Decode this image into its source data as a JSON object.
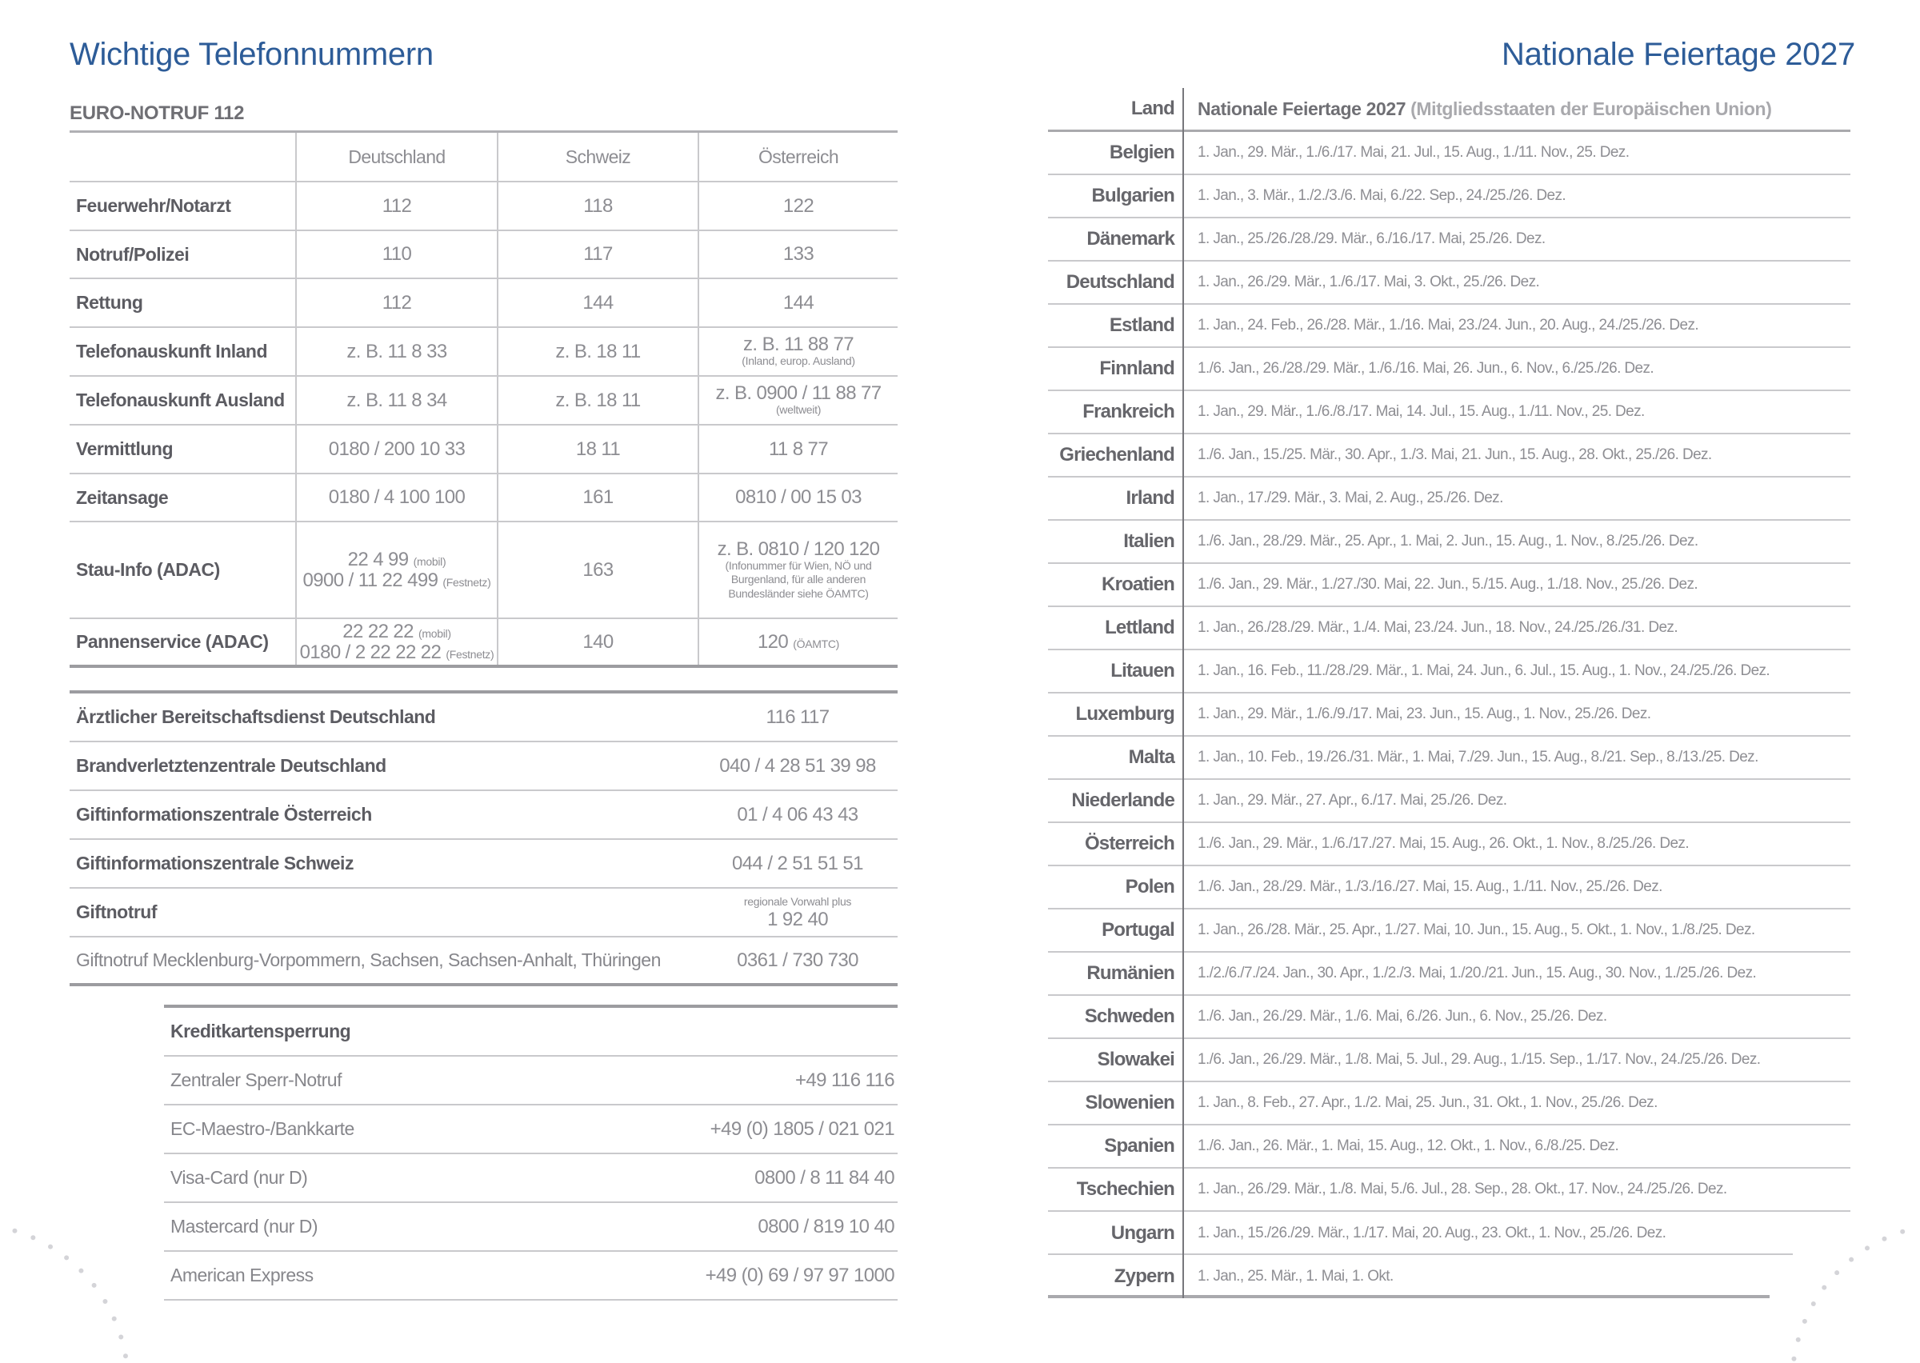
{
  "left": {
    "title": "Wichtige Telefonnummern",
    "section": "EURO-NOTRUF 112",
    "headers": [
      "",
      "Deutschland",
      "Schweiz",
      "Österreich"
    ],
    "rows": [
      {
        "label": "Feuerwehr/Notarzt",
        "cells": [
          {
            "lines": [
              {
                "t": "112"
              }
            ]
          },
          {
            "lines": [
              {
                "t": "118"
              }
            ]
          },
          {
            "lines": [
              {
                "t": "122"
              }
            ]
          }
        ]
      },
      {
        "label": "Notruf/Polizei",
        "cells": [
          {
            "lines": [
              {
                "t": "110"
              }
            ]
          },
          {
            "lines": [
              {
                "t": "117"
              }
            ]
          },
          {
            "lines": [
              {
                "t": "133"
              }
            ]
          }
        ]
      },
      {
        "label": "Rettung",
        "cells": [
          {
            "lines": [
              {
                "t": "112"
              }
            ]
          },
          {
            "lines": [
              {
                "t": "144"
              }
            ]
          },
          {
            "lines": [
              {
                "t": "144"
              }
            ]
          }
        ]
      },
      {
        "label": "Telefonauskunft Inland",
        "cells": [
          {
            "lines": [
              {
                "t": "z. B. 11 8 33"
              }
            ]
          },
          {
            "lines": [
              {
                "t": "z. B. 18 11"
              }
            ]
          },
          {
            "lines": [
              {
                "t": "z. B. 11 88 77"
              }
            ],
            "sub": "(Inland, europ. Ausland)"
          }
        ]
      },
      {
        "label": "Telefonauskunft Ausland",
        "cells": [
          {
            "lines": [
              {
                "t": "z. B. 11 8 34"
              }
            ]
          },
          {
            "lines": [
              {
                "t": "z. B. 18 11"
              }
            ]
          },
          {
            "lines": [
              {
                "t": "z. B. 0900 / 11 88 77"
              }
            ],
            "sub": "(weltweit)"
          }
        ]
      },
      {
        "label": "Vermittlung",
        "cells": [
          {
            "lines": [
              {
                "t": "0180 / 200 10 33"
              }
            ]
          },
          {
            "lines": [
              {
                "t": "18 11"
              }
            ]
          },
          {
            "lines": [
              {
                "t": "11 8 77"
              }
            ]
          }
        ]
      },
      {
        "label": "Zeitansage",
        "cells": [
          {
            "lines": [
              {
                "t": "0180 / 4 100 100"
              }
            ]
          },
          {
            "lines": [
              {
                "t": "161"
              }
            ]
          },
          {
            "lines": [
              {
                "t": "0810 / 00 15 03"
              }
            ]
          }
        ]
      },
      {
        "label": "Stau-Info (ADAC)",
        "cells": [
          {
            "lines": [
              {
                "t": "22 4 99",
                "n": "(mobil)"
              },
              {
                "t": "0900 / 11 22 499",
                "n": "(Festnetz)"
              }
            ]
          },
          {
            "lines": [
              {
                "t": "163"
              }
            ]
          },
          {
            "lines": [
              {
                "t": "z. B. 0810 / 120 120"
              }
            ],
            "sub": "(Infonummer für Wien, NÖ und Burgenland, für alle anderen Bundesländer siehe ÖAMTC)"
          }
        ]
      },
      {
        "label": "Pannenservice (ADAC)",
        "cells": [
          {
            "lines": [
              {
                "t": "22 22 22",
                "n": "(mobil)"
              },
              {
                "t": "0180 / 2 22 22 22",
                "n": "(Festnetz)"
              }
            ]
          },
          {
            "lines": [
              {
                "t": "140"
              }
            ]
          },
          {
            "lines": [
              {
                "t": "120",
                "n": "(ÖAMTC)"
              }
            ]
          }
        ]
      }
    ],
    "services": [
      {
        "label": "Ärztlicher Bereitschaftsdienst Deutschland",
        "value": "116 117"
      },
      {
        "label": "Brandverletztenzentrale Deutschland",
        "value": "040 / 4 28 51 39 98"
      },
      {
        "label": "Giftinformationszentrale Österreich",
        "value": "01 / 4 06 43 43"
      },
      {
        "label": "Giftinformationszentrale Schweiz",
        "value": "044 / 2 51 51 51"
      },
      {
        "label": "Giftnotruf",
        "value": "1 92 40",
        "pre": "regionale Vorwahl plus"
      },
      {
        "label": "Giftnotruf Mecklenburg-Vorpommern, Sachsen, Sachsen-Anhalt, Thüringen",
        "value": "0361 / 730 730",
        "light": true
      }
    ],
    "cards_title": "Kreditkartensperrung",
    "cards": [
      {
        "label": "Zentraler Sperr-Notruf",
        "value": "+49 116 116"
      },
      {
        "label": "EC-Maestro-/Bankkarte",
        "value": "+49 (0) 1805 / 021 021"
      },
      {
        "label": "Visa-Card (nur D)",
        "value": "0800 / 8 11 84 40"
      },
      {
        "label": "Mastercard (nur D)",
        "value": "0800 / 819 10 40"
      },
      {
        "label": "American Express",
        "value": "+49 (0) 69 / 97 97 1000"
      }
    ]
  },
  "right": {
    "title": "Nationale Feiertage 2027",
    "head_land": "Land",
    "head_title": "Nationale Feiertage 2027",
    "head_paren": "(Mitgliedsstaaten der Europäischen Union)",
    "countries": [
      {
        "land": "Belgien",
        "dates": "1. Jan., 29. Mär., 1./6./17. Mai, 21. Jul., 15. Aug., 1./11. Nov., 25. Dez."
      },
      {
        "land": "Bulgarien",
        "dates": "1. Jan., 3. Mär., 1./2./3./6. Mai, 6./22. Sep., 24./25./26. Dez."
      },
      {
        "land": "Dänemark",
        "dates": "1. Jan., 25./26./28./29. Mär., 6./16./17. Mai, 25./26. Dez."
      },
      {
        "land": "Deutschland",
        "dates": "1. Jan., 26./29. Mär., 1./6./17. Mai, 3. Okt., 25./26. Dez."
      },
      {
        "land": "Estland",
        "dates": "1. Jan., 24. Feb., 26./28. Mär., 1./16. Mai, 23./24. Jun., 20. Aug., 24./25./26. Dez."
      },
      {
        "land": "Finnland",
        "dates": "1./6. Jan., 26./28./29. Mär., 1./6./16. Mai, 26. Jun., 6. Nov., 6./25./26. Dez."
      },
      {
        "land": "Frankreich",
        "dates": "1. Jan., 29. Mär., 1./6./8./17. Mai, 14. Jul., 15. Aug., 1./11. Nov., 25. Dez."
      },
      {
        "land": "Griechenland",
        "dates": "1./6. Jan., 15./25. Mär., 30. Apr., 1./3. Mai, 21. Jun., 15. Aug., 28. Okt., 25./26. Dez."
      },
      {
        "land": "Irland",
        "dates": "1. Jan., 17./29. Mär., 3. Mai, 2. Aug., 25./26. Dez."
      },
      {
        "land": "Italien",
        "dates": "1./6. Jan., 28./29. Mär., 25. Apr., 1. Mai, 2. Jun., 15. Aug., 1. Nov., 8./25./26. Dez."
      },
      {
        "land": "Kroatien",
        "dates": "1./6. Jan., 29. Mär., 1./27./30. Mai, 22. Jun., 5./15. Aug., 1./18. Nov., 25./26. Dez."
      },
      {
        "land": "Lettland",
        "dates": "1. Jan., 26./28./29. Mär., 1./4. Mai, 23./24. Jun., 18. Nov., 24./25./26./31. Dez."
      },
      {
        "land": "Litauen",
        "dates": "1. Jan., 16. Feb., 11./28./29. Mär., 1. Mai, 24. Jun., 6. Jul., 15. Aug., 1. Nov., 24./25./26. Dez."
      },
      {
        "land": "Luxemburg",
        "dates": "1. Jan., 29. Mär., 1./6./9./17. Mai, 23. Jun., 15. Aug., 1. Nov., 25./26. Dez."
      },
      {
        "land": "Malta",
        "dates": "1. Jan., 10. Feb., 19./26./31. Mär., 1. Mai, 7./29. Jun., 15. Aug., 8./21. Sep., 8./13./25. Dez."
      },
      {
        "land": "Niederlande",
        "dates": "1. Jan., 29. Mär., 27. Apr., 6./17. Mai, 25./26. Dez."
      },
      {
        "land": "Österreich",
        "dates": "1./6. Jan., 29. Mär., 1./6./17./27. Mai, 15. Aug., 26. Okt., 1. Nov., 8./25./26. Dez."
      },
      {
        "land": "Polen",
        "dates": "1./6. Jan., 28./29. Mär., 1./3./16./27. Mai, 15. Aug., 1./11. Nov., 25./26. Dez."
      },
      {
        "land": "Portugal",
        "dates": "1. Jan., 26./28. Mär., 25. Apr., 1./27. Mai, 10. Jun., 15. Aug., 5. Okt., 1. Nov., 1./8./25. Dez."
      },
      {
        "land": "Rumänien",
        "dates": "1./2./6./7./24. Jan., 30. Apr., 1./2./3. Mai, 1./20./21. Jun., 15. Aug., 30. Nov., 1./25./26. Dez."
      },
      {
        "land": "Schweden",
        "dates": "1./6. Jan., 26./29. Mär., 1./6. Mai, 6./26. Jun., 6. Nov., 25./26. Dez."
      },
      {
        "land": "Slowakei",
        "dates": "1./6. Jan., 26./29. Mär., 1./8. Mai, 5. Jul., 29. Aug., 1./15. Sep., 1./17. Nov., 24./25./26. Dez."
      },
      {
        "land": "Slowenien",
        "dates": "1. Jan., 8. Feb., 27. Apr., 1./2. Mai, 25. Jun., 31. Okt., 1. Nov., 25./26. Dez."
      },
      {
        "land": "Spanien",
        "dates": "1./6. Jan., 26. Mär., 1. Mai, 15. Aug., 12. Okt., 1. Nov., 6./8./25. Dez."
      },
      {
        "land": "Tschechien",
        "dates": "1. Jan., 26./29. Mär., 1./8. Mai, 5./6. Jul., 28. Sep., 28. Okt., 17. Nov., 24./25./26. Dez."
      },
      {
        "land": "Ungarn",
        "dates": "1. Jan., 15./26./29. Mär., 1./17. Mai, 20. Aug., 23. Okt., 1. Nov., 25./26. Dez."
      },
      {
        "land": "Zypern",
        "dates": "1. Jan., 25. Mär., 1. Mai, 1. Okt."
      }
    ]
  }
}
